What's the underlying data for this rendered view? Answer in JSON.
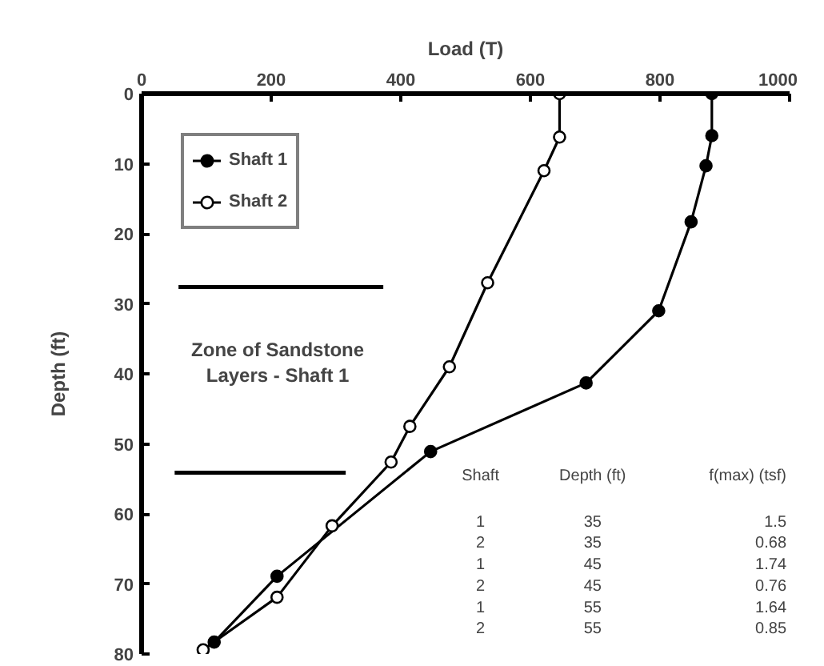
{
  "chart_data": {
    "type": "line",
    "xlabel": "Load (T)",
    "ylabel": "Depth (ft)",
    "xlim": [
      0,
      1000
    ],
    "xticks": [
      0,
      200,
      400,
      600,
      800,
      1000
    ],
    "ylim": [
      80,
      0
    ],
    "yticks": [
      0,
      10,
      20,
      30,
      40,
      50,
      60,
      70,
      80
    ],
    "grid": false,
    "legend": "top left",
    "line_style": "solid",
    "marker": "circle",
    "series": [
      {
        "name": "Shaft 1",
        "color": "#000000",
        "x": [
          880,
          880,
          871,
          848,
          798,
          686,
          446,
          209,
          112
        ],
        "values": [
          0,
          6,
          10.3,
          18.3,
          31,
          41.3,
          51.1,
          68.9,
          78.3
        ]
      },
      {
        "name": "Shaft 2",
        "color": "#000000",
        "x": [
          645,
          645,
          621,
          534,
          475,
          414,
          385,
          294,
          209,
          95
        ],
        "values": [
          0,
          6.2,
          11,
          27,
          39,
          47.5,
          52.6,
          61.7,
          71.9,
          79.4
        ]
      }
    ],
    "ref_lines": [
      {
        "axis": "y",
        "value": 27.6,
        "label": "Zone of Sandstone Layers - Shaft 1",
        "color": "#000000"
      },
      {
        "axis": "y",
        "value": 54.1,
        "color": "#000000"
      }
    ],
    "annotations": [
      "Shaft",
      "Depth (ft)",
      "f(max) (tsf)",
      "1",
      "35",
      "1.5",
      "2",
      "35",
      "0.68",
      "1",
      "45",
      "1.74",
      "2",
      "45",
      "0.76",
      "1",
      "55",
      "1.64",
      "2",
      "55",
      "0.85"
    ]
  }
}
